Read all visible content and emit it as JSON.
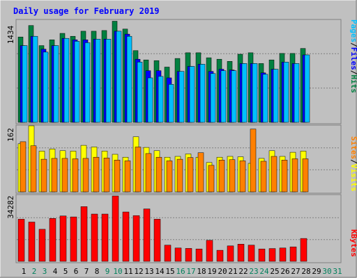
{
  "chart_data": [
    {
      "type": "bar",
      "title": "Daily usage for February 2019",
      "panel": "hits-files-pages",
      "ymax_label": "1434",
      "ylim": [
        0,
        1434
      ],
      "categories": [
        "1",
        "2",
        "3",
        "4",
        "5",
        "6",
        "7",
        "8",
        "9",
        "10",
        "11",
        "12",
        "13",
        "14",
        "15",
        "16",
        "17",
        "18",
        "19",
        "20",
        "21",
        "22",
        "23",
        "24",
        "25",
        "26",
        "27",
        "28",
        "29",
        "30",
        "31"
      ],
      "series": [
        {
          "name": "Hits",
          "color": "#008040",
          "values": [
            1190,
            1350,
            1070,
            1150,
            1240,
            1200,
            1270,
            1270,
            1280,
            1410,
            1300,
            1000,
            870,
            860,
            770,
            890,
            970,
            970,
            900,
            880,
            850,
            950,
            970,
            820,
            870,
            960,
            960,
            1030,
            null,
            null,
            null
          ]
        },
        {
          "name": "Files",
          "color": "#0000ff",
          "values": [
            1070,
            1200,
            1020,
            1070,
            1170,
            1150,
            1150,
            1160,
            1160,
            1270,
            1230,
            880,
            720,
            720,
            620,
            710,
            780,
            810,
            710,
            740,
            730,
            820,
            820,
            690,
            740,
            840,
            820,
            940,
            null,
            null,
            null
          ]
        },
        {
          "name": "Pages",
          "color": "#00c0ff",
          "values": [
            1070,
            1200,
            980,
            1070,
            1170,
            1130,
            1110,
            1160,
            1160,
            1270,
            1200,
            840,
            620,
            640,
            530,
            710,
            780,
            810,
            680,
            720,
            720,
            820,
            820,
            670,
            740,
            840,
            820,
            940,
            null,
            null,
            null
          ]
        }
      ]
    },
    {
      "type": "bar",
      "panel": "visits-sites",
      "ymax_label": "162",
      "ylim": [
        0,
        162
      ],
      "categories": [
        "1",
        "2",
        "3",
        "4",
        "5",
        "6",
        "7",
        "8",
        "9",
        "10",
        "11",
        "12",
        "13",
        "14",
        "15",
        "16",
        "17",
        "18",
        "19",
        "20",
        "21",
        "22",
        "23",
        "24",
        "25",
        "26",
        "27",
        "28",
        "29",
        "30",
        "31"
      ],
      "series": [
        {
          "name": "Visits",
          "color": "#ffff00",
          "values": [
            118,
            162,
            100,
            105,
            101,
            100,
            114,
            110,
            100,
            92,
            85,
            135,
            109,
            101,
            85,
            87,
            93,
            85,
            72,
            85,
            87,
            86,
            70,
            82,
            101,
            87,
            97,
            100,
            null,
            null,
            null
          ]
        },
        {
          "name": "Sites",
          "color": "#ff8000",
          "values": [
            123,
            113,
            80,
            82,
            82,
            81,
            82,
            85,
            83,
            78,
            76,
            110,
            94,
            85,
            76,
            80,
            84,
            96,
            65,
            78,
            79,
            76,
            154,
            75,
            87,
            78,
            81,
            81,
            null,
            null,
            null
          ]
        }
      ]
    },
    {
      "type": "bar",
      "panel": "kbytes",
      "ymax_label": "34282",
      "ylim": [
        0,
        34282
      ],
      "categories": [
        "1",
        "2",
        "3",
        "4",
        "5",
        "6",
        "7",
        "8",
        "9",
        "10",
        "11",
        "12",
        "13",
        "14",
        "15",
        "16",
        "17",
        "18",
        "19",
        "20",
        "21",
        "22",
        "23",
        "24",
        "25",
        "26",
        "27",
        "28",
        "29",
        "30",
        "31"
      ],
      "series": [
        {
          "name": "KBytes",
          "color": "#ff0000",
          "values": [
            22100,
            20600,
            16800,
            22500,
            23800,
            23300,
            28700,
            24800,
            24800,
            34282,
            25900,
            24000,
            27500,
            22100,
            8500,
            7000,
            6800,
            6500,
            11000,
            5800,
            8100,
            9000,
            8500,
            6500,
            6700,
            7000,
            7600,
            12000,
            null,
            null,
            null
          ]
        }
      ]
    }
  ],
  "legends": {
    "top": [
      {
        "text": "Hits",
        "color": "#008040"
      },
      {
        "text": "Files",
        "color": "#0000ff"
      },
      {
        "text": "Pages",
        "color": "#00c0ff"
      }
    ],
    "separator": "/",
    "middle": [
      {
        "text": "Visits",
        "color": "#ffff00"
      },
      {
        "text": "Sites",
        "color": "#ff8000"
      }
    ],
    "bottom": [
      {
        "text": "KBytes",
        "color": "#ff0000"
      }
    ]
  },
  "weekend_days": [
    2,
    3,
    9,
    10,
    16,
    17,
    23,
    24,
    30,
    31
  ],
  "colors": {
    "background": "#c0c0c0",
    "title": "#0000ff",
    "weekday_label": "#000000",
    "weekend_label": "#00805c"
  }
}
